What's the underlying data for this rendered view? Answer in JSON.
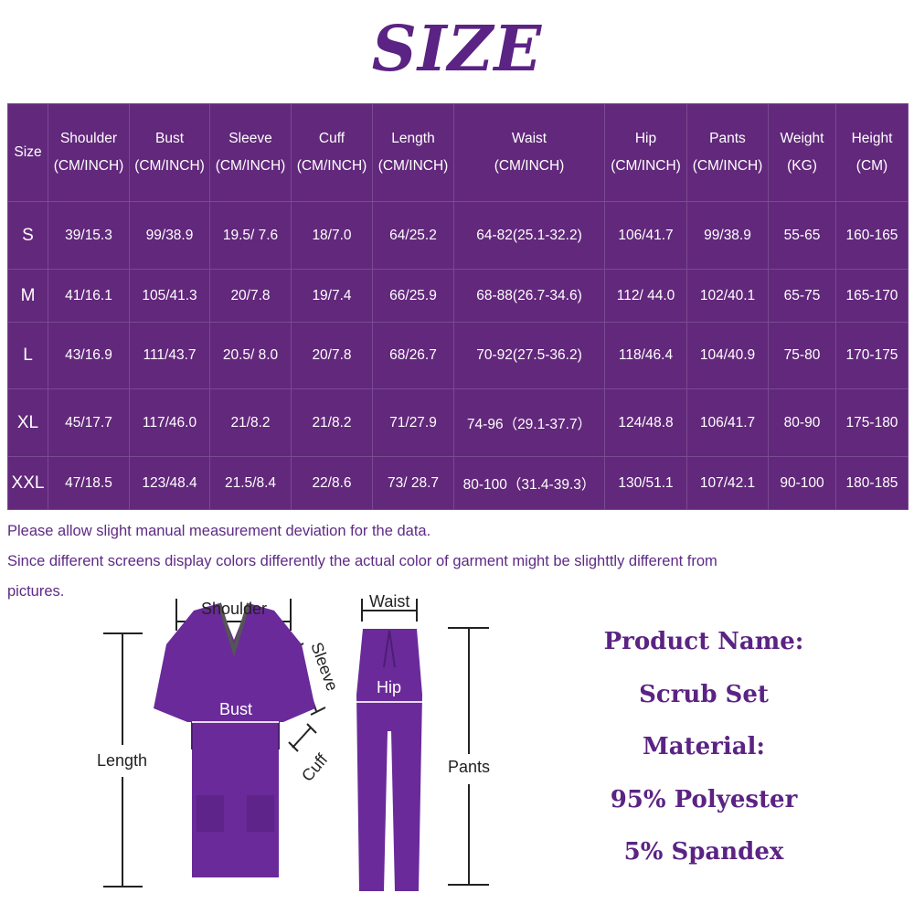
{
  "title": "SIZE",
  "table": {
    "headers": [
      [
        "Size",
        ""
      ],
      [
        "Shoulder",
        "(CM/INCH)"
      ],
      [
        "Bust",
        "(CM/INCH)"
      ],
      [
        "Sleeve",
        "(CM/INCH)"
      ],
      [
        "Cuff",
        "(CM/INCH)"
      ],
      [
        "Length",
        "(CM/INCH)"
      ],
      [
        "Waist",
        "(CM/INCH)"
      ],
      [
        "Hip",
        "(CM/INCH)"
      ],
      [
        "Pants",
        "(CM/INCH)"
      ],
      [
        "Weight",
        "(KG)"
      ],
      [
        "Height",
        "(CM)"
      ]
    ],
    "rows": [
      [
        "S",
        "39/15.3",
        "99/38.9",
        "19.5/ 7.6",
        "18/7.0",
        "64/25.2",
        "64-82(25.1-32.2)",
        "106/41.7",
        "99/38.9",
        "55-65",
        "160-165"
      ],
      [
        "M",
        "41/16.1",
        "105/41.3",
        "20/7.8",
        "19/7.4",
        "66/25.9",
        "68-88(26.7-34.6)",
        "112/ 44.0",
        "102/40.1",
        "65-75",
        "165-170"
      ],
      [
        "L",
        "43/16.9",
        "111/43.7",
        "20.5/ 8.0",
        "20/7.8",
        "68/26.7",
        "70-92(27.5-36.2)",
        "118/46.4",
        "104/40.9",
        "75-80",
        "170-175"
      ],
      [
        "XL",
        "45/17.7",
        "117/46.0",
        "21/8.2",
        "21/8.2",
        "71/27.9",
        "74-96（29.1-37.7）",
        "124/48.8",
        "106/41.7",
        "80-90",
        "175-180"
      ],
      [
        "XXL",
        "47/18.5",
        "123/48.4",
        "21.5/8.4",
        "22/8.6",
        "73/ 28.7",
        "80-100（31.4-39.3）",
        "130/51.1",
        "107/42.1",
        "90-100",
        "180-185"
      ]
    ]
  },
  "notes": [
    "Please allow slight manual measurement deviation for the data.",
    "Since different screens display colors differently the actual color of garment might be slighttly different from",
    "pictures."
  ],
  "diagram_labels": {
    "shoulder": "Shoulder",
    "sleeve": "Sleeve",
    "bust": "Bust",
    "cuff": "Cuff",
    "length": "Length",
    "waist": "Waist",
    "hip": "Hip",
    "pants": "Pants"
  },
  "product": [
    "Product Name:",
    "Scrub Set",
    "Material:",
    "95% Polyester",
    "5% Spandex"
  ],
  "colors": {
    "primary": "#62287b",
    "text": "#5b2384",
    "garment": "#6a2a9a"
  }
}
